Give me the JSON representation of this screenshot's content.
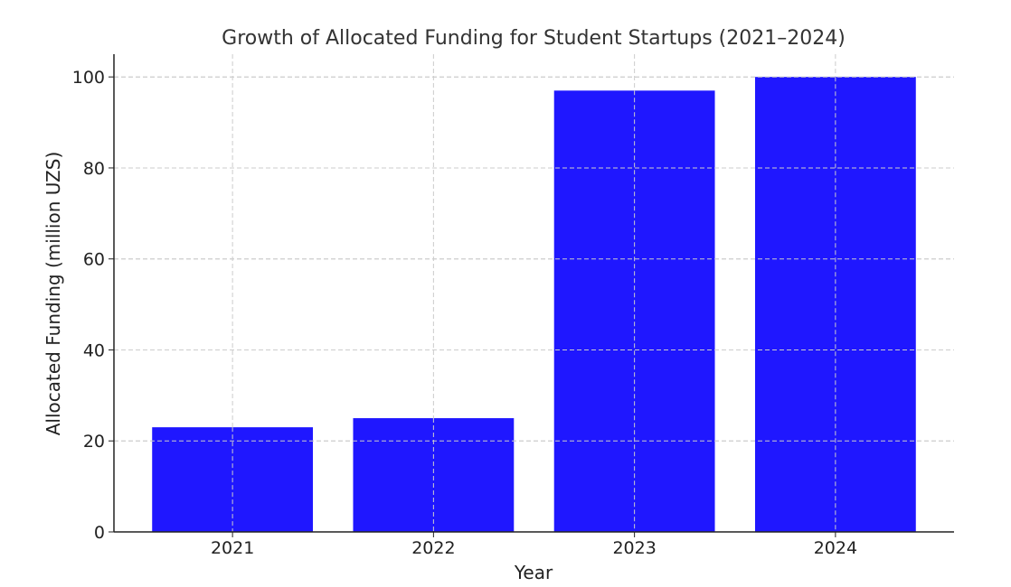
{
  "chart_data": {
    "type": "bar",
    "title": "Growth of Allocated Funding for Student Startups (2021–2024)",
    "xlabel": "Year",
    "ylabel": "Allocated Funding (million UZS)",
    "categories": [
      "2021",
      "2022",
      "2023",
      "2024"
    ],
    "values": [
      23,
      25,
      97,
      100
    ],
    "ylim": [
      0,
      105
    ],
    "yticks": [
      0,
      20,
      40,
      60,
      80,
      100
    ],
    "grid": true,
    "bar_color": "#1f17ff"
  }
}
